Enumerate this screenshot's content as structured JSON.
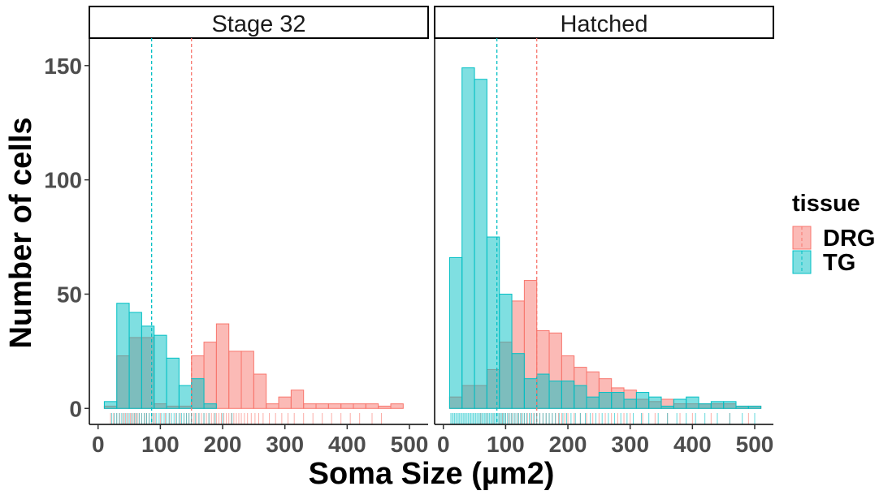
{
  "chart_data": {
    "type": "histogram",
    "xlabel": "Soma Size (µm2)",
    "ylabel": "Number of cells",
    "xlim": [
      -14,
      530
    ],
    "ylim": [
      -7,
      162
    ],
    "x_ticks": [
      0,
      100,
      200,
      300,
      400,
      500
    ],
    "y_ticks": [
      0,
      50,
      100,
      150
    ],
    "bin_width": 20,
    "bin_starts": [
      10,
      30,
      50,
      70,
      90,
      110,
      130,
      150,
      170,
      190,
      210,
      230,
      250,
      270,
      290,
      310,
      330,
      350,
      370,
      390,
      410,
      430,
      450,
      470,
      490
    ],
    "legend": {
      "title": "tissue",
      "position": "right",
      "entries": [
        {
          "label": "DRG",
          "fill": "#F8766D",
          "stroke": "#F8766D"
        },
        {
          "label": "TG",
          "fill": "#00BFC4",
          "stroke": "#00BFC4"
        }
      ]
    },
    "panels": [
      {
        "strip": "Stage 32",
        "series": [
          {
            "name": "DRG",
            "mean_line": 150,
            "values": [
              1,
              23,
              31,
              31,
              2,
              1,
              1,
              23,
              29,
              37,
              25,
              25,
              15,
              2,
              5,
              8,
              2,
              2,
              2,
              2,
              2,
              2,
              1,
              2,
              0
            ],
            "rug": [
              20,
              25,
              30,
              35,
              40,
              44,
              48,
              52,
              55,
              58,
              60,
              63,
              66,
              70,
              75,
              78,
              82,
              88,
              92,
              100,
              108,
              115,
              125,
              132,
              138,
              142,
              146,
              150,
              154,
              158,
              162,
              166,
              170,
              174,
              178,
              182,
              186,
              190,
              194,
              198,
              202,
              206,
              210,
              214,
              218,
              222,
              226,
              230,
              235,
              240,
              246,
              252,
              258,
              265,
              275,
              285,
              295,
              305,
              315,
              330,
              345,
              360,
              375,
              390,
              405,
              420,
              440,
              455
            ]
          },
          {
            "name": "TG",
            "mean_line": 86,
            "values": [
              3,
              46,
              42,
              36,
              32,
              22,
              10,
              13,
              2,
              0,
              0,
              0,
              0,
              0,
              0,
              0,
              0,
              0,
              0,
              0,
              0,
              0,
              0,
              0,
              0
            ],
            "rug": [
              22,
              26,
              30,
              34,
              38,
              42,
              46,
              50,
              54,
              58,
              62,
              66,
              70,
              74,
              78,
              82,
              86,
              90,
              94,
              98,
              102,
              106,
              110,
              114,
              118,
              122,
              126,
              130,
              134,
              138,
              142,
              146,
              150,
              156,
              162,
              170,
              178,
              188,
              200,
              215
            ]
          }
        ]
      },
      {
        "strip": "Hatched",
        "series": [
          {
            "name": "DRG",
            "mean_line": 150,
            "values": [
              5,
              10,
              10,
              17,
              29,
              47,
              56,
              34,
              33,
              23,
              18,
              16,
              13,
              9,
              8,
              4,
              3,
              4,
              2,
              2,
              2,
              2,
              2,
              1,
              1
            ],
            "rug": [
              60,
              70,
              80,
              90,
              95,
              100,
              105,
              110,
              115,
              120,
              125,
              130,
              135,
              140,
              145,
              150,
              155,
              160,
              165,
              170,
              175,
              180,
              185,
              190,
              195,
              200,
              210,
              220,
              230,
              240,
              250,
              260,
              270,
              280,
              290,
              300,
              320,
              340,
              360,
              380,
              400,
              430,
              460,
              490
            ]
          },
          {
            "name": "TG",
            "mean_line": 86,
            "values": [
              66,
              149,
              144,
              75,
              50,
              24,
              13,
              15,
              12,
              12,
              10,
              5,
              7,
              7,
              4,
              7,
              5,
              1,
              4,
              5,
              2,
              3,
              3,
              1,
              1
            ],
            "rug": [
              12,
              14,
              16,
              18,
              20,
              22,
              24,
              26,
              28,
              30,
              32,
              34,
              36,
              38,
              40,
              42,
              44,
              46,
              48,
              50,
              52,
              54,
              56,
              58,
              60,
              62,
              64,
              66,
              68,
              70,
              72,
              74,
              76,
              78,
              80,
              82,
              84,
              86,
              88,
              90,
              92,
              94,
              96,
              98,
              100,
              103,
              106,
              109,
              112,
              115,
              118,
              121,
              124,
              127,
              130,
              134,
              138,
              142,
              146,
              150,
              155,
              160,
              165,
              170,
              175,
              180,
              186,
              192,
              198,
              205,
              212,
              220,
              228,
              236,
              245,
              255,
              265,
              275,
              285,
              295,
              305,
              318,
              330,
              345,
              360,
              375,
              390,
              405,
              420,
              440,
              460,
              480,
              500
            ]
          }
        ]
      }
    ]
  }
}
